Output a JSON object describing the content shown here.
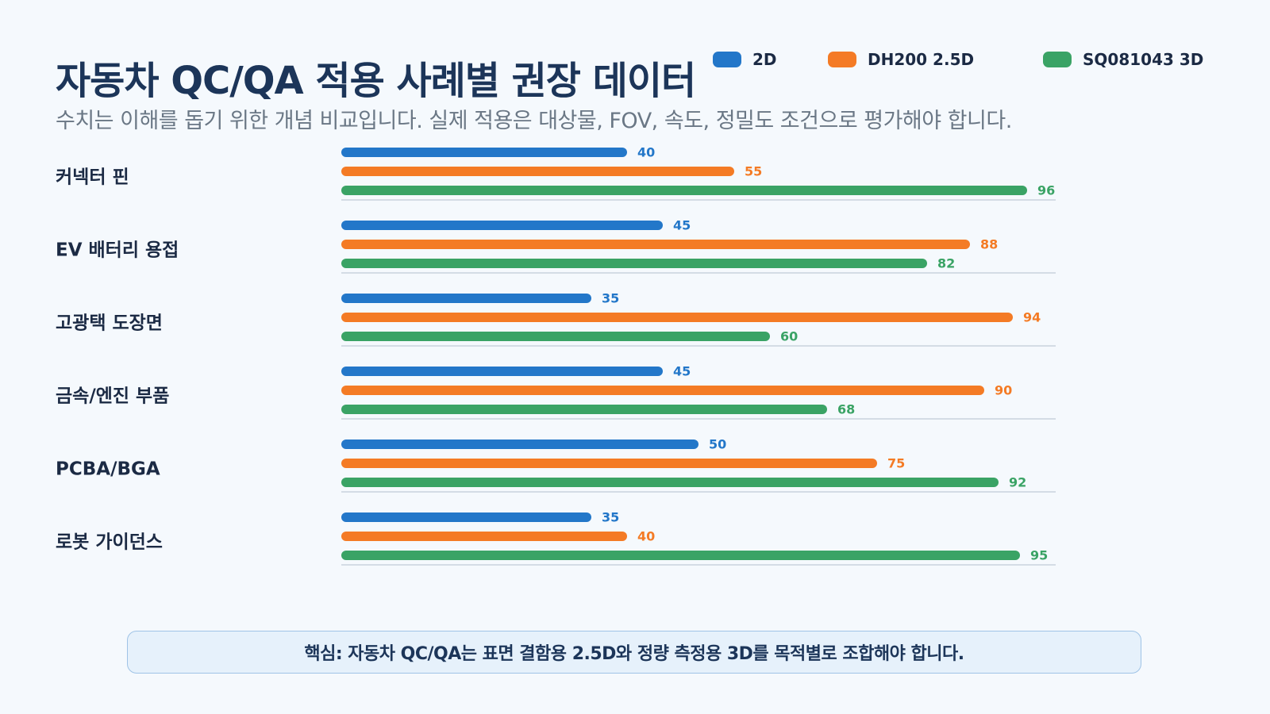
{
  "title": "자동차 QC/QA 적용 사례별 권장 데이터",
  "subtitle": "수치는 이해를 돕기 위한 개념 비교입니다. 실제 적용은 대상물, FOV, 속도, 정밀도 조건으로 평가해야 합니다.",
  "callout": "핵심: 자동차 QC/QA는 표면 결함용 2.5D와 정량 측정용 3D를 목적별로 조합해야 합니다.",
  "colors": {
    "blue": "#2377c9",
    "orange": "#f47b25",
    "green": "#3aa365",
    "divider": "#c9d3dd"
  },
  "chart_data": {
    "type": "bar",
    "orientation": "horizontal",
    "categories": [
      "커넥터 핀",
      "EV 배터리 용접",
      "고광택 도장면",
      "금속/엔진 부품",
      "PCBA/BGA",
      "로봇 가이던스"
    ],
    "series": [
      {
        "name": "2D",
        "color": "#2377c9",
        "values": [
          40,
          45,
          35,
          45,
          50,
          35
        ]
      },
      {
        "name": "DH200 2.5D",
        "color": "#f47b25",
        "values": [
          55,
          88,
          94,
          90,
          75,
          40
        ]
      },
      {
        "name": "SQ081043 3D",
        "color": "#3aa365",
        "values": [
          96,
          82,
          60,
          68,
          92,
          95
        ]
      }
    ],
    "xlim": [
      0,
      100
    ],
    "grid": false,
    "legend": "top-right",
    "data_labels": true
  }
}
